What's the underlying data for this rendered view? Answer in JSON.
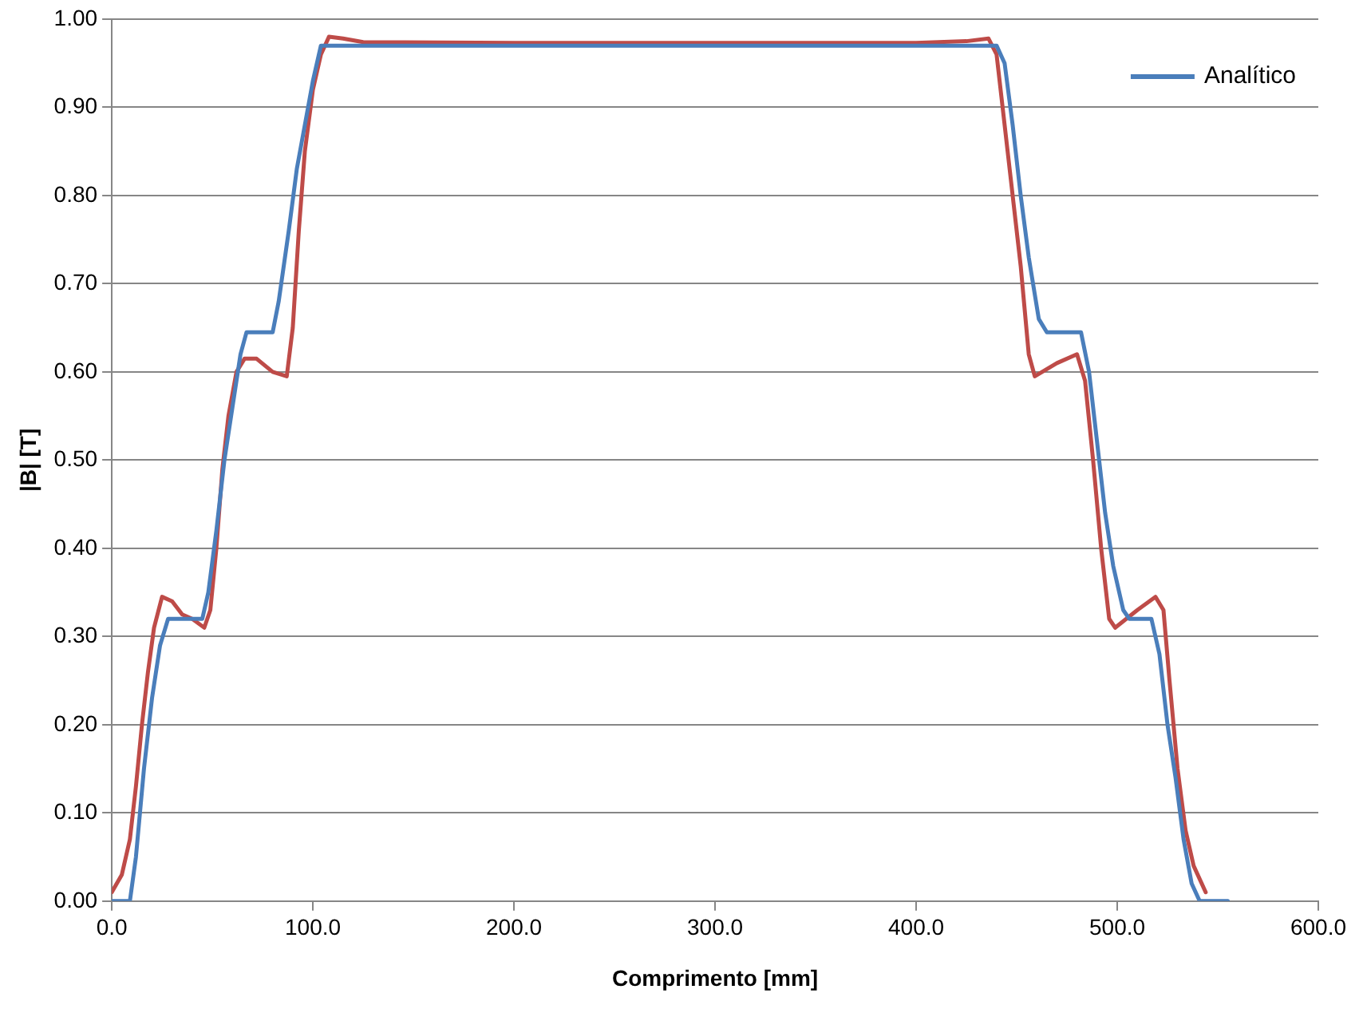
{
  "chart_data": {
    "type": "line",
    "xlabel": "Comprimento [mm]",
    "ylabel": "|B| [T]",
    "xlim": [
      0,
      600
    ],
    "xticks": [
      {
        "value": 0,
        "label": "0.0"
      },
      {
        "value": 100,
        "label": "100.0"
      },
      {
        "value": 200,
        "label": "200.0"
      },
      {
        "value": 300,
        "label": "300.0"
      },
      {
        "value": 400,
        "label": "400.0"
      },
      {
        "value": 500,
        "label": "500.0"
      },
      {
        "value": 600,
        "label": "600.0"
      }
    ],
    "ylim": [
      0,
      1
    ],
    "yticks": [
      {
        "value": 0,
        "label": "0.00"
      },
      {
        "value": 0.1,
        "label": "0.10"
      },
      {
        "value": 0.2,
        "label": "0.20"
      },
      {
        "value": 0.3,
        "label": "0.30"
      },
      {
        "value": 0.4,
        "label": "0.40"
      },
      {
        "value": 0.5,
        "label": "0.50"
      },
      {
        "value": 0.6,
        "label": "0.60"
      },
      {
        "value": 0.7,
        "label": "0.70"
      },
      {
        "value": 0.8,
        "label": "0.80"
      },
      {
        "value": 0.9,
        "label": "0.90"
      },
      {
        "value": 1,
        "label": "1.00"
      }
    ],
    "grid": "y",
    "legend": "top right",
    "marker": "none",
    "line_style": "solid",
    "series": [
      {
        "name": "Analítico",
        "color": "#4a7ebb",
        "x": [
          0,
          9,
          12,
          16,
          20,
          24,
          28,
          35,
          45,
          48,
          52,
          56,
          60,
          64,
          67,
          72,
          80,
          83,
          88,
          92,
          96,
          100,
          104,
          110,
          200,
          300,
          400,
          440,
          444,
          448,
          452,
          456,
          461,
          465,
          475,
          482,
          486,
          490,
          494,
          498,
          503,
          506,
          512,
          517,
          521,
          525,
          529,
          533,
          537,
          541,
          555
        ],
        "values": [
          0,
          0,
          0.05,
          0.15,
          0.23,
          0.29,
          0.32,
          0.32,
          0.32,
          0.35,
          0.42,
          0.5,
          0.56,
          0.62,
          0.645,
          0.645,
          0.645,
          0.68,
          0.76,
          0.83,
          0.88,
          0.93,
          0.97,
          0.97,
          0.97,
          0.97,
          0.97,
          0.97,
          0.95,
          0.88,
          0.8,
          0.73,
          0.66,
          0.645,
          0.645,
          0.645,
          0.6,
          0.52,
          0.44,
          0.38,
          0.33,
          0.32,
          0.32,
          0.32,
          0.28,
          0.2,
          0.14,
          0.07,
          0.02,
          0,
          0
        ]
      },
      {
        "color": "#be4b48",
        "x": [
          0,
          5,
          9,
          12,
          15,
          18,
          21,
          25,
          30,
          35,
          40,
          46,
          49,
          52,
          55,
          58,
          62,
          66,
          72,
          80,
          87,
          90,
          93,
          96,
          100,
          104,
          108,
          115,
          125,
          200,
          300,
          400,
          425,
          436,
          440,
          444,
          448,
          452,
          456,
          459,
          470,
          480,
          484,
          488,
          492,
          496,
          499,
          510,
          519,
          523,
          526,
          530,
          534,
          538,
          544
        ],
        "values": [
          0.01,
          0.03,
          0.07,
          0.13,
          0.2,
          0.26,
          0.31,
          0.345,
          0.34,
          0.325,
          0.32,
          0.31,
          0.33,
          0.4,
          0.49,
          0.55,
          0.6,
          0.615,
          0.615,
          0.6,
          0.595,
          0.65,
          0.76,
          0.85,
          0.92,
          0.96,
          0.98,
          0.978,
          0.974,
          0.973,
          0.973,
          0.973,
          0.975,
          0.978,
          0.96,
          0.88,
          0.8,
          0.72,
          0.62,
          0.595,
          0.61,
          0.62,
          0.59,
          0.5,
          0.4,
          0.32,
          0.31,
          0.33,
          0.345,
          0.33,
          0.25,
          0.15,
          0.08,
          0.04,
          0.01
        ]
      }
    ]
  }
}
